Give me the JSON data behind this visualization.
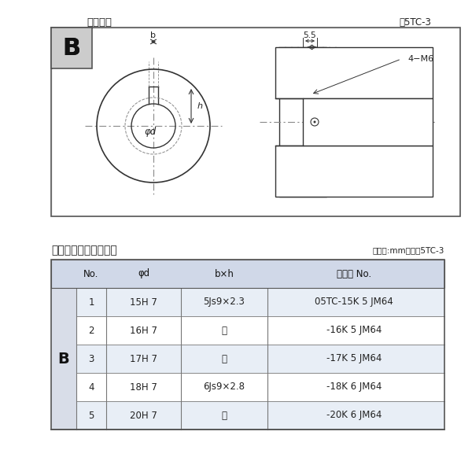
{
  "top_label": "軸穴形状",
  "top_right_label": "図5TC-3",
  "B_label": "B",
  "dim_b": "b",
  "dim_h": "h",
  "dim_phi_d": "φd",
  "dim_55": "5.5",
  "dim_4m6": "4−M6",
  "table_title": "軸穴形状コード一覧表",
  "table_unit": "（単位:mm）　表5TC-3",
  "col_headers": [
    "No.",
    "φd",
    "b×h",
    "コード No."
  ],
  "rows": [
    [
      "1",
      "15H 7",
      "5Js9×2.3",
      "05TC-15K 5 JM64"
    ],
    [
      "2",
      "16H 7",
      "〃",
      "-16K 5 JM64"
    ],
    [
      "3",
      "17H 7",
      "〃",
      "-17K 5 JM64"
    ],
    [
      "4",
      "18H 7",
      "6Js9×2.8",
      "-18K 6 JM64"
    ],
    [
      "5",
      "20H 7",
      "〃",
      "-20K 6 JM64"
    ]
  ],
  "row_label_B": "B",
  "bg_color": "#ffffff",
  "table_header_bg": "#d0d8e8",
  "table_row_bg": "#e8eef6",
  "table_alt_bg": "#ffffff",
  "border_color": "#555555",
  "text_color": "#222222",
  "light_gray": "#cccccc",
  "diagram_bg": "#f5f5f5"
}
